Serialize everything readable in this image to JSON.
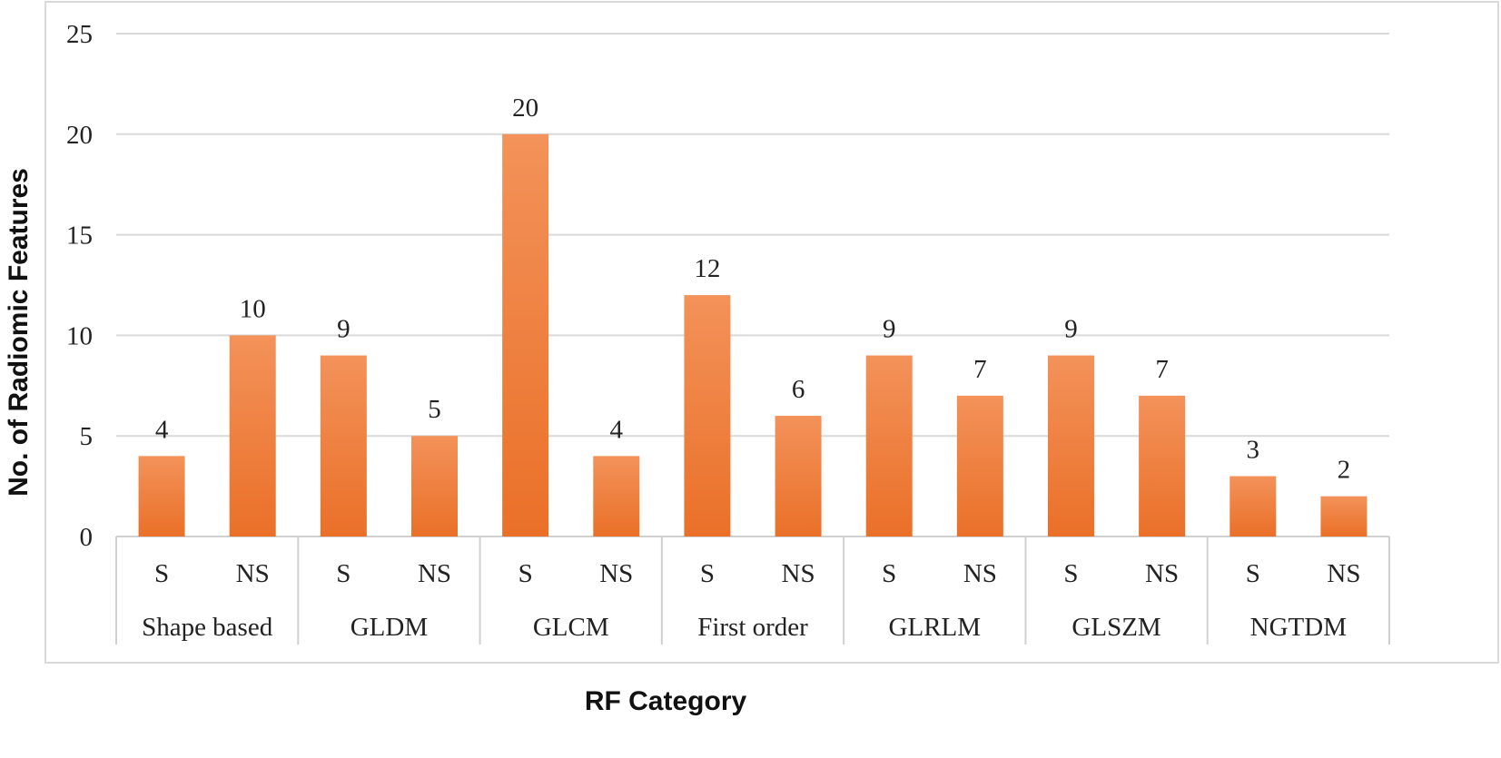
{
  "chart_data": {
    "type": "bar",
    "groups": [
      {
        "name": "Shape based",
        "bars": [
          {
            "label": "S",
            "value": 4
          },
          {
            "label": "NS",
            "value": 10
          }
        ]
      },
      {
        "name": "GLDM",
        "bars": [
          {
            "label": "S",
            "value": 9
          },
          {
            "label": "NS",
            "value": 5
          }
        ]
      },
      {
        "name": "GLCM",
        "bars": [
          {
            "label": "S",
            "value": 20
          },
          {
            "label": "NS",
            "value": 4
          }
        ]
      },
      {
        "name": "First order",
        "bars": [
          {
            "label": "S",
            "value": 12
          },
          {
            "label": "NS",
            "value": 6
          }
        ]
      },
      {
        "name": "GLRLM",
        "bars": [
          {
            "label": "S",
            "value": 9
          },
          {
            "label": "NS",
            "value": 7
          }
        ]
      },
      {
        "name": "GLSZM",
        "bars": [
          {
            "label": "S",
            "value": 9
          },
          {
            "label": "NS",
            "value": 7
          }
        ]
      },
      {
        "name": "NGTDM",
        "bars": [
          {
            "label": "S",
            "value": 3
          },
          {
            "label": "NS",
            "value": 2
          }
        ]
      }
    ],
    "xlabel": "RF Category",
    "ylabel": "No. of Radiomic Features",
    "ylim": [
      0,
      25
    ],
    "yticks": [
      0,
      5,
      10,
      15,
      20,
      25
    ],
    "grid": true,
    "data_labels": true,
    "colors": {
      "bar": "#ED7D31",
      "bar_light": "#F39A5C",
      "grid": "#d9d9d9",
      "frame": "#d0d0d0"
    }
  }
}
